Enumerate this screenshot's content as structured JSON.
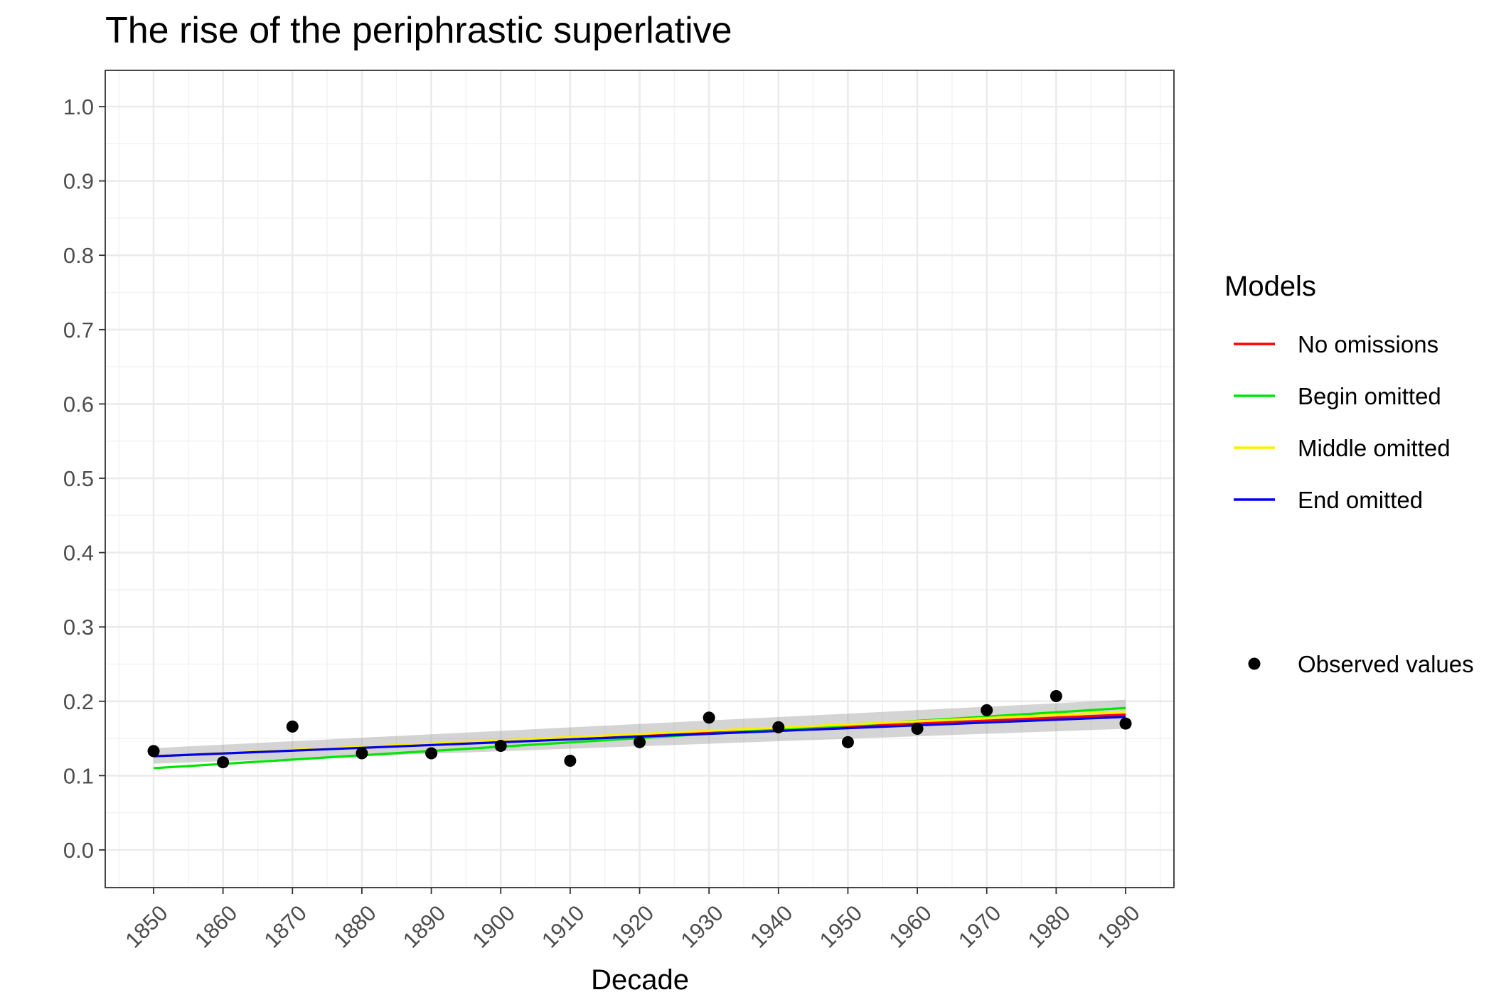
{
  "chart_data": {
    "type": "line",
    "title": "The rise of the periphrastic superlative",
    "xlabel": "Decade",
    "ylabel": "",
    "x": [
      1850,
      1860,
      1870,
      1880,
      1890,
      1900,
      1910,
      1920,
      1930,
      1940,
      1950,
      1960,
      1970,
      1980,
      1990
    ],
    "xlim": [
      1850,
      1990
    ],
    "ylim": [
      0.0,
      1.0
    ],
    "x_tick_labels": [
      "1850",
      "1860",
      "1870",
      "1880",
      "1890",
      "1900",
      "1910",
      "1920",
      "1930",
      "1940",
      "1950",
      "1960",
      "1970",
      "1980",
      "1990"
    ],
    "y_tick_labels": [
      "0.0",
      "0.1",
      "0.2",
      "0.3",
      "0.4",
      "0.5",
      "0.6",
      "0.7",
      "0.8",
      "0.9",
      "1.0"
    ],
    "y_ticks": [
      0.0,
      0.1,
      0.2,
      0.3,
      0.4,
      0.5,
      0.6,
      0.7,
      0.8,
      0.9,
      1.0
    ],
    "grid": true,
    "legend_title": "Models",
    "legend_position": "right",
    "series": [
      {
        "name": "No omissions",
        "color": "#ff0000",
        "x": [
          1850,
          1990
        ],
        "values": [
          0.126,
          0.182
        ]
      },
      {
        "name": "Begin omitted",
        "color": "#00e600",
        "x": [
          1850,
          1990
        ],
        "values": [
          0.11,
          0.191
        ]
      },
      {
        "name": "Middle omitted",
        "color": "#ffee00",
        "x": [
          1850,
          1990
        ],
        "values": [
          0.126,
          0.186
        ]
      },
      {
        "name": "End omitted",
        "color": "#0000ee",
        "x": [
          1850,
          1990
        ],
        "values": [
          0.126,
          0.179
        ]
      }
    ],
    "confidence_band": {
      "x": [
        1850,
        1990
      ],
      "lower": [
        0.116,
        0.163
      ],
      "upper": [
        0.137,
        0.202
      ]
    },
    "observed": {
      "name": "Observed values",
      "x": [
        1850,
        1860,
        1870,
        1880,
        1890,
        1900,
        1910,
        1920,
        1930,
        1940,
        1950,
        1960,
        1970,
        1980,
        1990
      ],
      "values": [
        0.133,
        0.118,
        0.166,
        0.13,
        0.13,
        0.14,
        0.12,
        0.145,
        0.178,
        0.165,
        0.145,
        0.163,
        0.188,
        0.207,
        0.17
      ]
    }
  }
}
